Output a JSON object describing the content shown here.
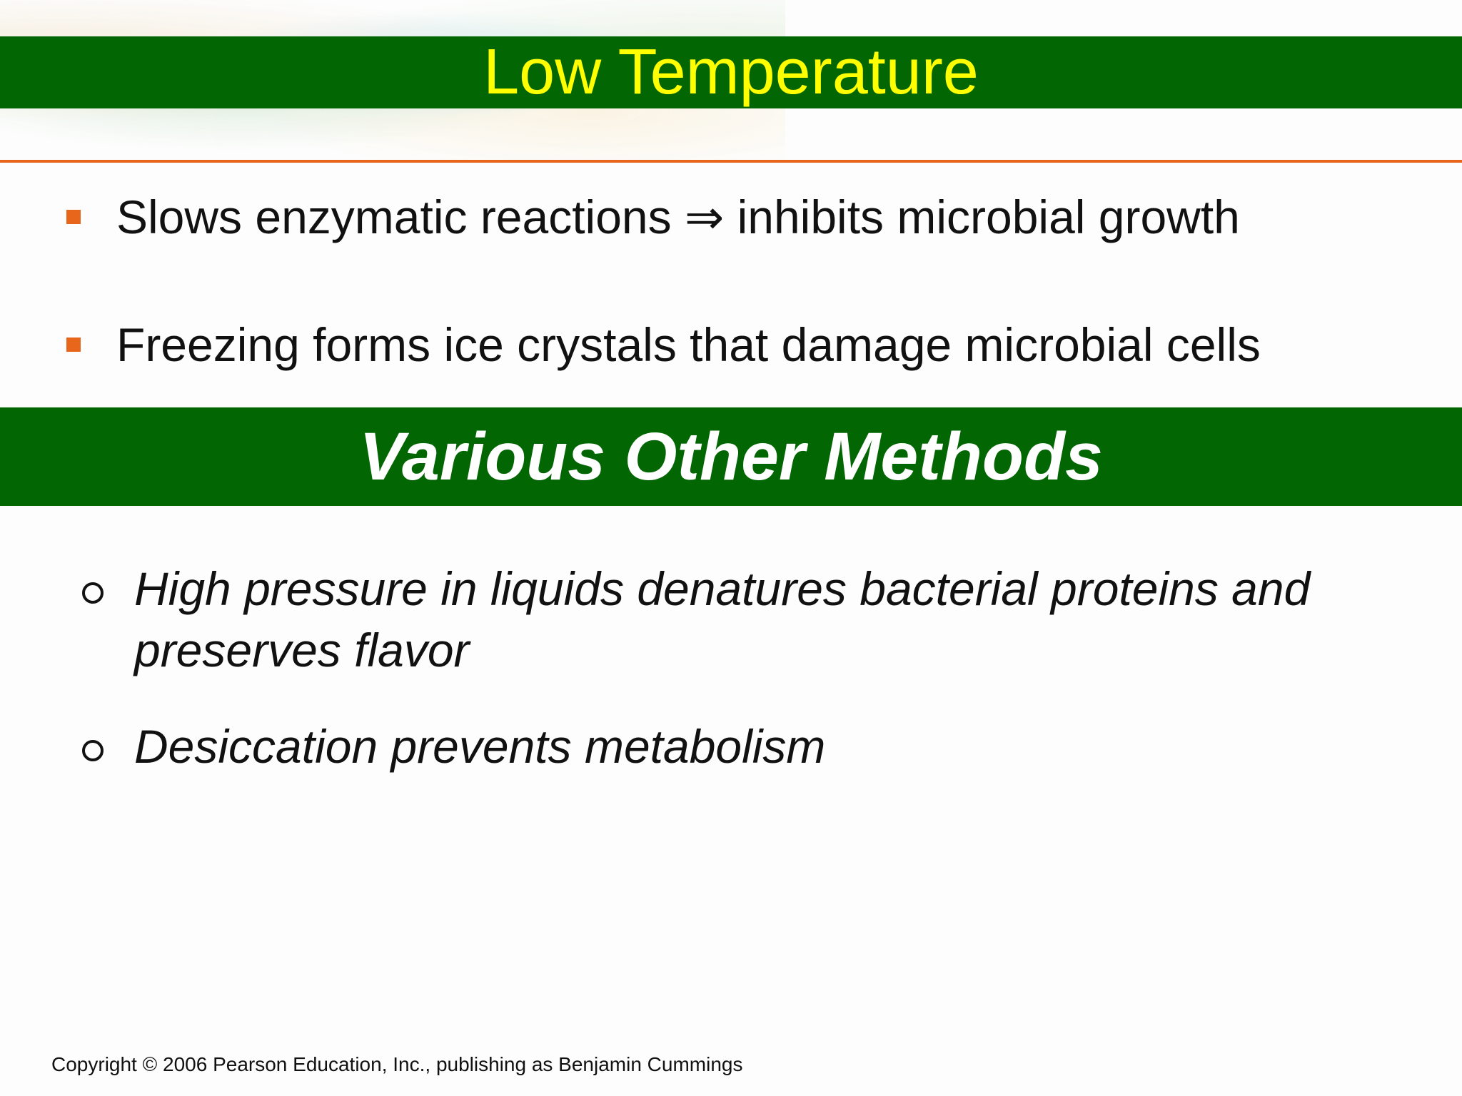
{
  "slide": {
    "title": "Low Temperature",
    "bullets": [
      "Slows enzymatic reactions ⇒ inhibits microbial growth",
      "Freezing forms ice crystals that damage microbial cells"
    ],
    "section_heading": "Various Other Methods",
    "sub_bullets": [
      "High pressure in liquids denatures bacterial proteins and preserves flavor",
      "Desiccation prevents metabolism"
    ],
    "copyright": "Copyright © 2006 Pearson Education, Inc., publishing as Benjamin Cummings"
  },
  "colors": {
    "title_bar": "#026602",
    "title_text": "#ffff00",
    "section_text": "#ffffff",
    "accent_orange": "#e8651c",
    "body_text": "#111111",
    "background": "#fdfdfd"
  }
}
